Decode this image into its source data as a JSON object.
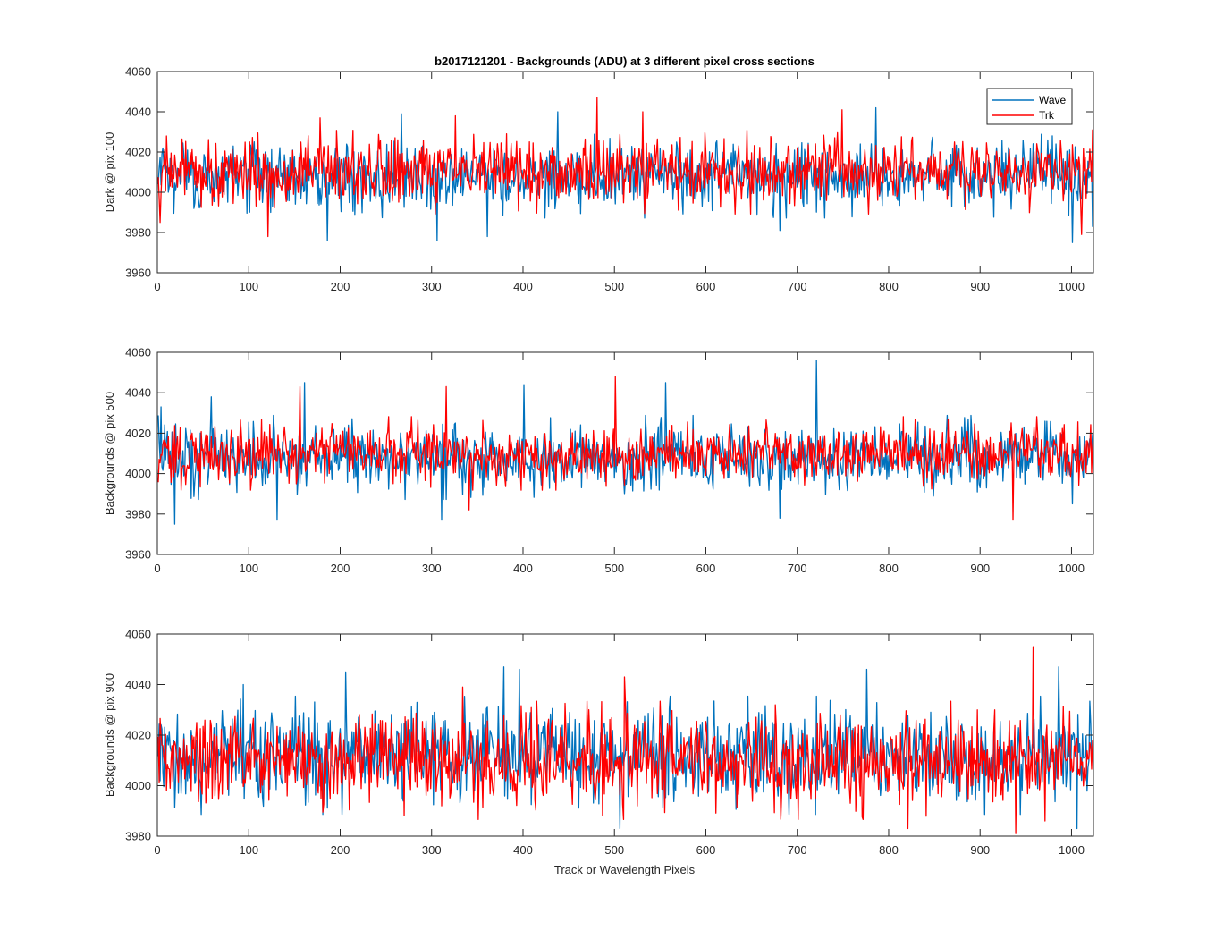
{
  "figure": {
    "title": "b2017121201 - Backgrounds (ADU) at 3 different pixel cross sections",
    "xlabel": "Track or Wavelength Pixels"
  },
  "colors": {
    "wave": "#0072BD",
    "trk": "#FF0000",
    "axis": "#262626"
  },
  "legend": {
    "placement": "top-right",
    "entries": [
      "Wave",
      "Trk"
    ]
  },
  "chart_data": [
    {
      "type": "line",
      "ylabel": "Dark @ pix 100",
      "xlim": [
        0,
        1024
      ],
      "ylim": [
        3960,
        4060
      ],
      "xticks": [
        0,
        100,
        200,
        300,
        400,
        500,
        600,
        700,
        800,
        900,
        1000
      ],
      "yticks": [
        3960,
        3980,
        4000,
        4020,
        4040,
        4060
      ],
      "n_points": 1024,
      "series": [
        {
          "name": "Wave",
          "color": "#0072BD",
          "mean": 4008,
          "std": 8,
          "spikes": [
            [
              5,
              4022
            ],
            [
              185,
              3976
            ],
            [
              266,
              4039
            ],
            [
              305,
              3976
            ],
            [
              360,
              3978
            ],
            [
              437,
              4040
            ],
            [
              680,
              3981
            ],
            [
              785,
              4042
            ],
            [
              1000,
              3975
            ],
            [
              1022,
              3983
            ]
          ]
        },
        {
          "name": "Trk",
          "color": "#FF0000",
          "mean": 4010,
          "std": 8,
          "spikes": [
            [
              2,
              3985
            ],
            [
              120,
              3978
            ],
            [
              177,
              4037
            ],
            [
              325,
              4038
            ],
            [
              480,
              4047
            ],
            [
              530,
              4040
            ],
            [
              748,
              4041
            ],
            [
              1010,
              3979
            ],
            [
              1022,
              4031
            ]
          ]
        }
      ]
    },
    {
      "type": "line",
      "ylabel": "Backgrounds @ pix 500",
      "xlim": [
        0,
        1024
      ],
      "ylim": [
        3960,
        4060
      ],
      "xticks": [
        0,
        100,
        200,
        300,
        400,
        500,
        600,
        700,
        800,
        900,
        1000
      ],
      "yticks": [
        3960,
        3980,
        4000,
        4020,
        4040,
        4060
      ],
      "n_points": 1024,
      "series": [
        {
          "name": "Wave",
          "color": "#0072BD",
          "mean": 4008,
          "std": 8,
          "spikes": [
            [
              3,
              4033
            ],
            [
              18,
              3975
            ],
            [
              58,
              4038
            ],
            [
              130,
              3977
            ],
            [
              160,
              4045
            ],
            [
              310,
              3977
            ],
            [
              400,
              4044
            ],
            [
              555,
              4045
            ],
            [
              720,
              4056
            ],
            [
              680,
              3978
            ],
            [
              1000,
              3985
            ]
          ]
        },
        {
          "name": "Trk",
          "color": "#FF0000",
          "mean": 4010,
          "std": 7,
          "spikes": [
            [
              155,
              4043
            ],
            [
              315,
              4043
            ],
            [
              500,
              4048
            ],
            [
              340,
              3982
            ],
            [
              935,
              3977
            ]
          ]
        }
      ]
    },
    {
      "type": "line",
      "ylabel": "Backgrounds @ pix 900",
      "xlim": [
        0,
        1024
      ],
      "ylim": [
        3980,
        4060
      ],
      "xticks": [
        0,
        100,
        200,
        300,
        400,
        500,
        600,
        700,
        800,
        900,
        1000
      ],
      "yticks": [
        3980,
        4000,
        4020,
        4040,
        4060
      ],
      "n_points": 1024,
      "series": [
        {
          "name": "Wave",
          "color": "#0072BD",
          "mean": 4012,
          "std": 9,
          "spikes": [
            [
              93,
              4040
            ],
            [
              205,
              4045
            ],
            [
              378,
              4047
            ],
            [
              395,
              4046
            ],
            [
              505,
              3983
            ],
            [
              775,
              4046
            ],
            [
              985,
              4047
            ],
            [
              1005,
              3983
            ]
          ]
        },
        {
          "name": "Trk",
          "color": "#FF0000",
          "mean": 4010,
          "std": 9,
          "spikes": [
            [
              333,
              4039
            ],
            [
              510,
              4043
            ],
            [
              820,
              3983
            ],
            [
              938,
              3981
            ],
            [
              957,
              4055
            ],
            [
              970,
              3986
            ]
          ]
        }
      ]
    }
  ]
}
